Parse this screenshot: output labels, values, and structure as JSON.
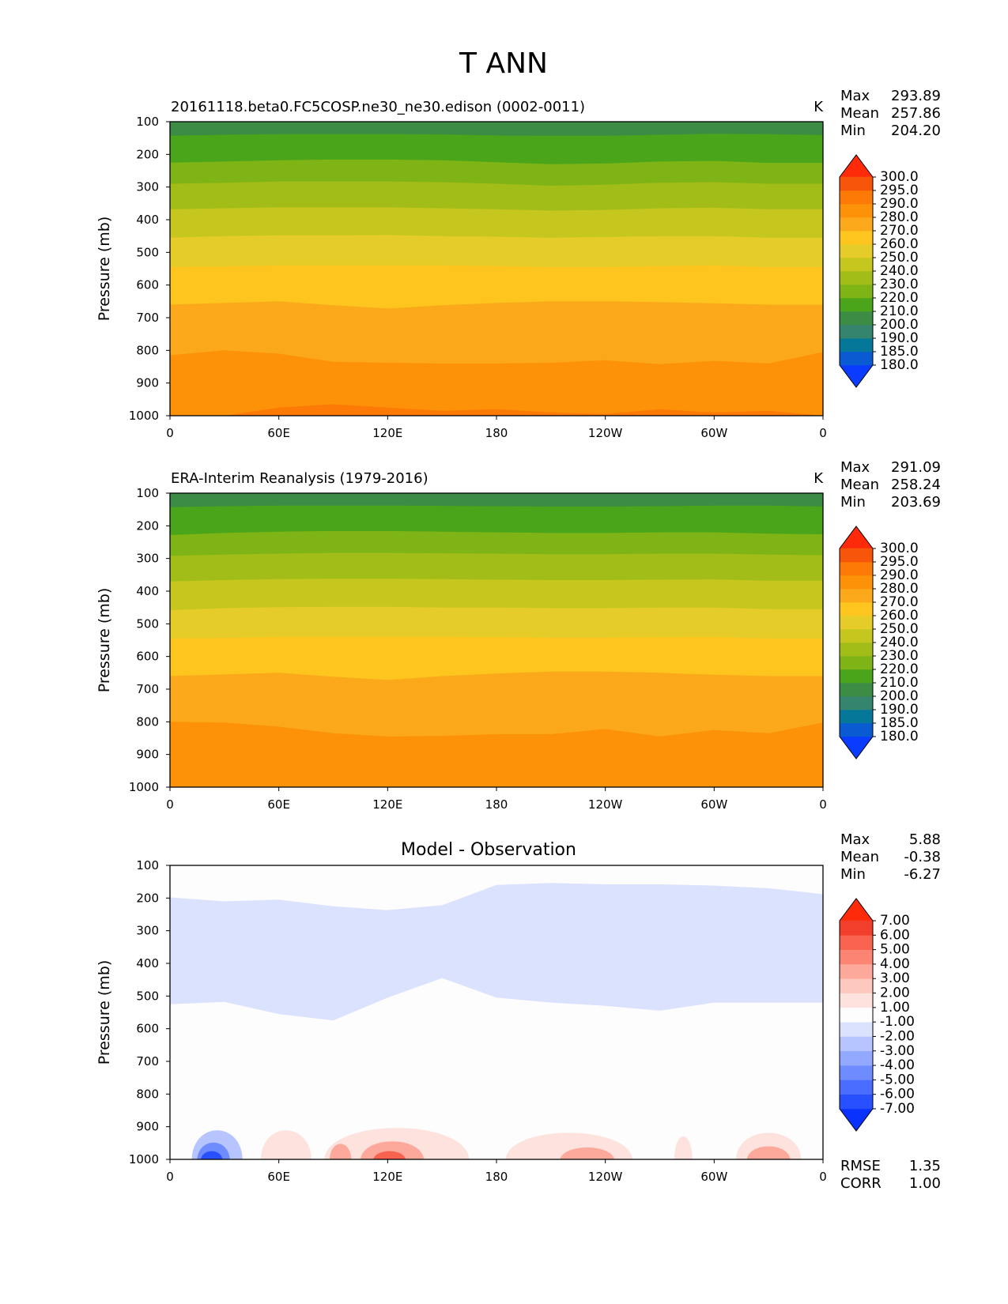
{
  "figure": {
    "title": "T ANN"
  },
  "chart_data": [
    {
      "type": "heatmap",
      "subtitle": "20161118.beta0.FC5COSP.ne30_ne30.edison (0002-0011)",
      "units": "K",
      "ylabel": "Pressure (mb)",
      "yticks": [
        "100",
        "200",
        "300",
        "400",
        "500",
        "600",
        "700",
        "800",
        "900",
        "1000"
      ],
      "ylim": [
        100,
        1000
      ],
      "y_inverted": true,
      "xticks": [
        "0",
        "60E",
        "120E",
        "180",
        "120W",
        "60W",
        "0"
      ],
      "xlim": [
        0,
        360
      ],
      "stats": {
        "max_label": "Max",
        "max": "293.89",
        "mean_label": "Mean",
        "mean": "257.86",
        "min_label": "Min",
        "min": "204.20"
      },
      "colorbar": {
        "levels": [
          "180.0",
          "185.0",
          "190.0",
          "200.0",
          "210.0",
          "220.0",
          "230.0",
          "240.0",
          "250.0",
          "260.0",
          "270.0",
          "280.0",
          "290.0",
          "295.0",
          "300.0"
        ],
        "colors": [
          "#0a3cff",
          "#0a5ad2",
          "#05789a",
          "#34846e",
          "#3c8c46",
          "#4aa51a",
          "#7fb416",
          "#a2bc18",
          "#c5c61e",
          "#e6cc28",
          "#fdc51d",
          "#fba91a",
          "#fd9209",
          "#fc7a05",
          "#f7550a",
          "#ff2a0a"
        ]
      },
      "bands": [
        {
          "color": "#3c8c46",
          "top": [
            100,
            100,
            100,
            100,
            100,
            100,
            100,
            100,
            100,
            100,
            100,
            100,
            100
          ]
        },
        {
          "color": "#4aa51a",
          "top": [
            143,
            140,
            138,
            138,
            138,
            139,
            142,
            143,
            143,
            140,
            137,
            138,
            141
          ]
        },
        {
          "color": "#7fb416",
          "top": [
            225,
            222,
            218,
            216,
            216,
            218,
            224,
            230,
            228,
            222,
            220,
            226,
            226
          ]
        },
        {
          "color": "#a2bc18",
          "top": [
            290,
            287,
            283,
            283,
            283,
            285,
            290,
            296,
            293,
            287,
            285,
            290,
            290
          ]
        },
        {
          "color": "#c5c61e",
          "top": [
            368,
            365,
            362,
            362,
            362,
            365,
            368,
            372,
            370,
            365,
            363,
            368,
            368
          ]
        },
        {
          "color": "#e6cc28",
          "top": [
            455,
            450,
            448,
            448,
            447,
            450,
            452,
            455,
            453,
            450,
            450,
            455,
            455
          ]
        },
        {
          "color": "#fdc51d",
          "top": [
            545,
            543,
            540,
            540,
            540,
            540,
            542,
            545,
            545,
            542,
            540,
            545,
            545
          ]
        },
        {
          "color": "#fba91a",
          "top": [
            660,
            655,
            650,
            662,
            672,
            662,
            655,
            650,
            650,
            652,
            656,
            660,
            660
          ]
        },
        {
          "color": "#fd9209",
          "top": [
            815,
            800,
            810,
            835,
            838,
            840,
            840,
            838,
            830,
            842,
            832,
            840,
            805
          ]
        },
        {
          "color": "#fc7a05",
          "top": [
            1000,
            1000,
            975,
            965,
            975,
            985,
            980,
            990,
            995,
            980,
            990,
            985,
            1000
          ]
        }
      ]
    },
    {
      "type": "heatmap",
      "subtitle": "ERA-Interim Reanalysis (1979-2016)",
      "units": "K",
      "ylabel": "Pressure (mb)",
      "yticks": [
        "100",
        "200",
        "300",
        "400",
        "500",
        "600",
        "700",
        "800",
        "900",
        "1000"
      ],
      "ylim": [
        100,
        1000
      ],
      "y_inverted": true,
      "xticks": [
        "0",
        "60E",
        "120E",
        "180",
        "120W",
        "60W",
        "0"
      ],
      "xlim": [
        0,
        360
      ],
      "stats": {
        "max_label": "Max",
        "max": "291.09",
        "mean_label": "Mean",
        "mean": "258.24",
        "min_label": "Min",
        "min": "203.69"
      },
      "colorbar": {
        "levels": [
          "180.0",
          "185.0",
          "190.0",
          "200.0",
          "210.0",
          "220.0",
          "230.0",
          "240.0",
          "250.0",
          "260.0",
          "270.0",
          "280.0",
          "290.0",
          "295.0",
          "300.0"
        ],
        "colors": [
          "#0a3cff",
          "#0a5ad2",
          "#05789a",
          "#34846e",
          "#3c8c46",
          "#4aa51a",
          "#7fb416",
          "#a2bc18",
          "#c5c61e",
          "#e6cc28",
          "#fdc51d",
          "#fba91a",
          "#fd9209",
          "#fc7a05",
          "#f7550a",
          "#ff2a0a"
        ]
      },
      "bands": [
        {
          "color": "#3c8c46",
          "top": [
            100,
            100,
            100,
            100,
            100,
            100,
            100,
            100,
            100,
            100,
            100,
            100,
            100
          ]
        },
        {
          "color": "#4aa51a",
          "top": [
            143,
            140,
            138,
            138,
            138,
            139,
            140,
            141,
            141,
            140,
            138,
            138,
            141
          ]
        },
        {
          "color": "#7fb416",
          "top": [
            228,
            222,
            218,
            216,
            216,
            218,
            220,
            222,
            222,
            220,
            220,
            224,
            226
          ]
        },
        {
          "color": "#a2bc18",
          "top": [
            292,
            288,
            285,
            283,
            283,
            284,
            285,
            287,
            287,
            285,
            285,
            288,
            290
          ]
        },
        {
          "color": "#c5c61e",
          "top": [
            370,
            366,
            363,
            362,
            362,
            363,
            365,
            366,
            366,
            365,
            364,
            368,
            368
          ]
        },
        {
          "color": "#e6cc28",
          "top": [
            458,
            452,
            449,
            448,
            448,
            450,
            450,
            452,
            452,
            450,
            450,
            455,
            455
          ]
        },
        {
          "color": "#fdc51d",
          "top": [
            545,
            543,
            540,
            540,
            540,
            540,
            541,
            542,
            542,
            541,
            540,
            545,
            545
          ]
        },
        {
          "color": "#fba91a",
          "top": [
            660,
            655,
            650,
            662,
            672,
            660,
            652,
            646,
            646,
            650,
            656,
            660,
            660
          ]
        },
        {
          "color": "#fd9209",
          "top": [
            800,
            802,
            815,
            835,
            845,
            843,
            838,
            838,
            822,
            845,
            825,
            835,
            802
          ]
        },
        {
          "color": "#fc7a05",
          "top": [
            1000,
            1000,
            1000,
            1000,
            1000,
            1000,
            1000,
            1000,
            1000,
            1000,
            1000,
            1000,
            1000
          ]
        }
      ]
    },
    {
      "type": "heatmap",
      "title": "Model - Observation",
      "ylabel": "Pressure (mb)",
      "yticks": [
        "100",
        "200",
        "300",
        "400",
        "500",
        "600",
        "700",
        "800",
        "900",
        "1000"
      ],
      "ylim": [
        100,
        1000
      ],
      "y_inverted": true,
      "xticks": [
        "0",
        "60E",
        "120E",
        "180",
        "120W",
        "60W",
        "0"
      ],
      "xlim": [
        0,
        360
      ],
      "stats": {
        "max_label": "Max",
        "max": "5.88",
        "mean_label": "Mean",
        "mean": "-0.38",
        "min_label": "Min",
        "min": "-6.27"
      },
      "metrics": {
        "rmse_label": "RMSE",
        "rmse": "1.35",
        "corr_label": "CORR",
        "corr": "1.00"
      },
      "colorbar": {
        "levels": [
          "-7.00",
          "-6.00",
          "-5.00",
          "-4.00",
          "-3.00",
          "-2.00",
          "-1.00",
          "1.00",
          "2.00",
          "3.00",
          "4.00",
          "5.00",
          "6.00",
          "7.00"
        ],
        "colors": [
          "#0a32ff",
          "#2850ff",
          "#4a6cff",
          "#6e8cff",
          "#93a8ff",
          "#b6c4ff",
          "#dbe2fd",
          "#fdfdfd",
          "#fde2dd",
          "#fdc8be",
          "#fca89a",
          "#fb8572",
          "#f7634e",
          "#f23f2b",
          "#ff2a0a"
        ]
      },
      "negative_region": {
        "color": "#dbe2fd",
        "x": [
          0,
          30,
          60,
          90,
          120,
          150,
          180,
          210,
          240,
          270,
          300,
          330,
          360
        ],
        "top": [
          198,
          210,
          205,
          225,
          237,
          222,
          160,
          154,
          158,
          158,
          162,
          170,
          188
        ],
        "bottom": [
          525,
          518,
          555,
          575,
          505,
          445,
          505,
          520,
          530,
          545,
          520,
          520,
          520
        ]
      },
      "positive_blobs": [
        {
          "x": [
            50,
            78
          ],
          "top": 880,
          "color": "#fde2dd"
        },
        {
          "x": [
            85,
            165
          ],
          "top": 870,
          "color": "#fde2dd"
        },
        {
          "x": [
            185,
            255
          ],
          "top": 890,
          "color": "#fde2dd"
        },
        {
          "x": [
            278,
            288
          ],
          "top": 905,
          "color": "#fde2dd"
        },
        {
          "x": [
            312,
            348
          ],
          "top": 890,
          "color": "#fde2dd"
        },
        {
          "x": [
            88,
            100
          ],
          "top": 935,
          "color": "#fca89a"
        },
        {
          "x": [
            105,
            140
          ],
          "top": 925,
          "color": "#fca89a"
        },
        {
          "x": [
            215,
            245
          ],
          "top": 950,
          "color": "#fca89a"
        },
        {
          "x": [
            318,
            342
          ],
          "top": 945,
          "color": "#fca89a"
        },
        {
          "x": [
            112,
            130
          ],
          "top": 965,
          "color": "#f7634e"
        }
      ],
      "negative_blobs": [
        {
          "x": [
            12,
            40
          ],
          "top": 880,
          "color": "#b6c4ff"
        },
        {
          "x": [
            15,
            33
          ],
          "top": 930,
          "color": "#6e8cff"
        },
        {
          "x": [
            17,
            29
          ],
          "top": 965,
          "color": "#2850ff"
        }
      ]
    }
  ]
}
